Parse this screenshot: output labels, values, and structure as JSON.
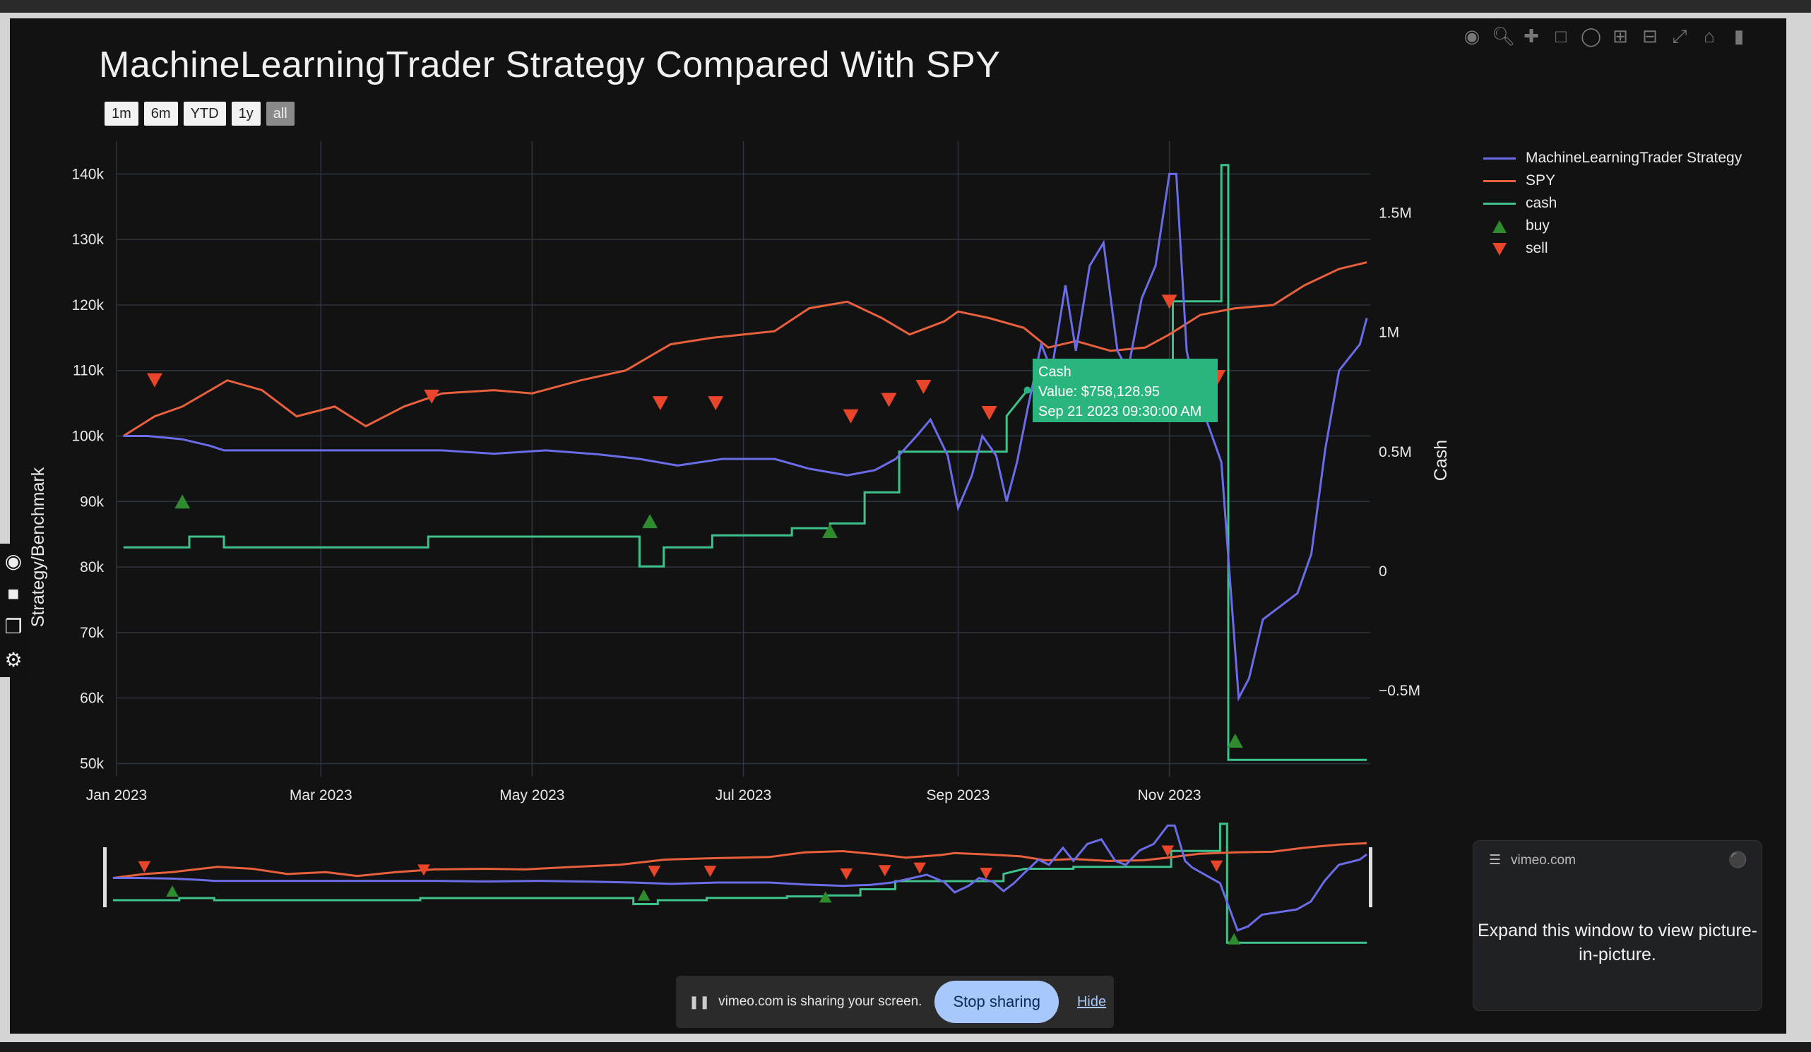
{
  "title": "MachineLearningTrader Strategy Compared With SPY",
  "range_selector": [
    {
      "label": "1m",
      "active": false
    },
    {
      "label": "6m",
      "active": false
    },
    {
      "label": "YTD",
      "active": false
    },
    {
      "label": "1y",
      "active": false
    },
    {
      "label": "all",
      "active": true
    }
  ],
  "modebar_icons": [
    "camera-icon",
    "zoom-icon",
    "pan-icon",
    "box-select-icon",
    "lasso-icon",
    "zoom-in-icon",
    "zoom-out-icon",
    "autoscale-icon",
    "reset-axes-icon",
    "plotly-logo-icon"
  ],
  "left_toolbar_icons": [
    "camera-icon",
    "video-icon",
    "window-icon",
    "gear-icon"
  ],
  "tooltip": {
    "title": "Cash",
    "line1": "Value: $758,128.95",
    "line2": "Sep 21 2023 09:30:00 AM",
    "color": "#2bb57e"
  },
  "pip": {
    "site": "vimeo.com",
    "message": "Expand this window to view picture-in-picture."
  },
  "share_bar": {
    "message": "vimeo.com is sharing your screen.",
    "stop_label": "Stop sharing",
    "hide_label": "Hide"
  },
  "colors": {
    "strategy": "#6b6ce8",
    "spy": "#e8603c",
    "cash": "#3fc18c",
    "buy": "#2e8b2e",
    "sell": "#e8452a",
    "grid": "#2e3440"
  },
  "chart_data": {
    "type": "line",
    "title": "MachineLearningTrader Strategy Compared With SPY",
    "x_ticks": [
      "Jan 2023",
      "Mar 2023",
      "May 2023",
      "Jul 2023",
      "Sep 2023",
      "Nov 2023"
    ],
    "xlim": [
      "2023-01-01",
      "2023-12-29"
    ],
    "ylabel": "Strategy/Benchmark",
    "ylim": [
      48000,
      145000
    ],
    "y_ticks": [
      {
        "value": 50000,
        "label": "50k"
      },
      {
        "value": 60000,
        "label": "60k"
      },
      {
        "value": 70000,
        "label": "70k"
      },
      {
        "value": 80000,
        "label": "80k"
      },
      {
        "value": 90000,
        "label": "90k"
      },
      {
        "value": 100000,
        "label": "100k"
      },
      {
        "value": 110000,
        "label": "110k"
      },
      {
        "value": 120000,
        "label": "120k"
      },
      {
        "value": 130000,
        "label": "130k"
      },
      {
        "value": 140000,
        "label": "140k"
      }
    ],
    "y2label": "Cash",
    "y2lim": [
      -860000,
      1800000
    ],
    "y2_ticks": [
      {
        "value": -500000,
        "label": "−0.5M"
      },
      {
        "value": 0,
        "label": "0"
      },
      {
        "value": 500000,
        "label": "0.5M"
      },
      {
        "value": 1000000,
        "label": "1M"
      },
      {
        "value": 1500000,
        "label": "1.5M"
      }
    ],
    "legend_position": "top-right",
    "grid": true,
    "series": [
      {
        "name": "MachineLearningTrader Strategy",
        "axis": "y",
        "points": [
          [
            "2023-01-03",
            100000
          ],
          [
            "2023-01-10",
            100000
          ],
          [
            "2023-01-20",
            99500
          ],
          [
            "2023-01-28",
            98500
          ],
          [
            "2023-02-01",
            97800
          ],
          [
            "2023-02-20",
            97800
          ],
          [
            "2023-03-15",
            97800
          ],
          [
            "2023-04-05",
            97800
          ],
          [
            "2023-04-20",
            97300
          ],
          [
            "2023-05-05",
            97800
          ],
          [
            "2023-05-20",
            97200
          ],
          [
            "2023-06-01",
            96500
          ],
          [
            "2023-06-12",
            95500
          ],
          [
            "2023-06-25",
            96500
          ],
          [
            "2023-07-10",
            96500
          ],
          [
            "2023-07-20",
            95000
          ],
          [
            "2023-07-31",
            94000
          ],
          [
            "2023-08-08",
            94800
          ],
          [
            "2023-08-14",
            96500
          ],
          [
            "2023-08-20",
            100000
          ],
          [
            "2023-08-24",
            102500
          ],
          [
            "2023-08-29",
            97000
          ],
          [
            "2023-09-01",
            89000
          ],
          [
            "2023-09-05",
            94000
          ],
          [
            "2023-09-08",
            100000
          ],
          [
            "2023-09-12",
            97000
          ],
          [
            "2023-09-15",
            90000
          ],
          [
            "2023-09-18",
            96000
          ],
          [
            "2023-09-21",
            104000
          ],
          [
            "2023-09-25",
            114000
          ],
          [
            "2023-09-28",
            110000
          ],
          [
            "2023-10-02",
            123000
          ],
          [
            "2023-10-05",
            113000
          ],
          [
            "2023-10-09",
            126000
          ],
          [
            "2023-10-13",
            129500
          ],
          [
            "2023-10-17",
            113000
          ],
          [
            "2023-10-20",
            110000
          ],
          [
            "2023-10-24",
            121000
          ],
          [
            "2023-10-28",
            126000
          ],
          [
            "2023-11-01",
            140000
          ],
          [
            "2023-11-03",
            140000
          ],
          [
            "2023-11-06",
            113000
          ],
          [
            "2023-11-08",
            108000
          ],
          [
            "2023-11-12",
            102000
          ],
          [
            "2023-11-16",
            96000
          ],
          [
            "2023-11-21",
            60000
          ],
          [
            "2023-11-24",
            63000
          ],
          [
            "2023-11-28",
            72000
          ],
          [
            "2023-12-03",
            74000
          ],
          [
            "2023-12-08",
            76000
          ],
          [
            "2023-12-12",
            82000
          ],
          [
            "2023-12-16",
            98000
          ],
          [
            "2023-12-20",
            110000
          ],
          [
            "2023-12-26",
            114000
          ],
          [
            "2023-12-28",
            118000
          ]
        ]
      },
      {
        "name": "SPY",
        "axis": "y",
        "points": [
          [
            "2023-01-03",
            100000
          ],
          [
            "2023-01-12",
            103000
          ],
          [
            "2023-01-20",
            104500
          ],
          [
            "2023-02-02",
            108500
          ],
          [
            "2023-02-12",
            107000
          ],
          [
            "2023-02-22",
            103000
          ],
          [
            "2023-03-05",
            104500
          ],
          [
            "2023-03-14",
            101500
          ],
          [
            "2023-03-25",
            104500
          ],
          [
            "2023-04-05",
            106500
          ],
          [
            "2023-04-20",
            107000
          ],
          [
            "2023-05-01",
            106500
          ],
          [
            "2023-05-15",
            108500
          ],
          [
            "2023-05-28",
            110000
          ],
          [
            "2023-06-10",
            114000
          ],
          [
            "2023-06-22",
            115000
          ],
          [
            "2023-07-01",
            115500
          ],
          [
            "2023-07-10",
            116000
          ],
          [
            "2023-07-20",
            119500
          ],
          [
            "2023-07-31",
            120500
          ],
          [
            "2023-08-10",
            118000
          ],
          [
            "2023-08-18",
            115500
          ],
          [
            "2023-08-28",
            117500
          ],
          [
            "2023-09-01",
            119000
          ],
          [
            "2023-09-10",
            118000
          ],
          [
            "2023-09-20",
            116500
          ],
          [
            "2023-09-27",
            113500
          ],
          [
            "2023-10-05",
            114500
          ],
          [
            "2023-10-15",
            113000
          ],
          [
            "2023-10-25",
            113500
          ],
          [
            "2023-11-01",
            115500
          ],
          [
            "2023-11-10",
            118500
          ],
          [
            "2023-11-20",
            119500
          ],
          [
            "2023-12-01",
            120000
          ],
          [
            "2023-12-10",
            123000
          ],
          [
            "2023-12-20",
            125500
          ],
          [
            "2023-12-28",
            126500
          ]
        ]
      },
      {
        "name": "cash",
        "axis": "y2",
        "points": [
          [
            "2023-01-03",
            100000
          ],
          [
            "2023-01-22",
            100000
          ],
          [
            "2023-01-22",
            145000
          ],
          [
            "2023-02-01",
            145000
          ],
          [
            "2023-02-01",
            100000
          ],
          [
            "2023-04-01",
            100000
          ],
          [
            "2023-04-01",
            145000
          ],
          [
            "2023-06-01",
            145000
          ],
          [
            "2023-06-01",
            20000
          ],
          [
            "2023-06-08",
            20000
          ],
          [
            "2023-06-08",
            100000
          ],
          [
            "2023-06-22",
            100000
          ],
          [
            "2023-06-22",
            150000
          ],
          [
            "2023-07-15",
            150000
          ],
          [
            "2023-07-15",
            180000
          ],
          [
            "2023-07-26",
            180000
          ],
          [
            "2023-07-26",
            200000
          ],
          [
            "2023-08-05",
            200000
          ],
          [
            "2023-08-05",
            330000
          ],
          [
            "2023-08-15",
            330000
          ],
          [
            "2023-08-15",
            500000
          ],
          [
            "2023-08-25",
            500000
          ],
          [
            "2023-08-25",
            500000
          ],
          [
            "2023-09-15",
            500000
          ],
          [
            "2023-09-15",
            650000
          ],
          [
            "2023-09-21",
            758129
          ],
          [
            "2023-10-05",
            758129
          ],
          [
            "2023-10-05",
            800000
          ],
          [
            "2023-11-02",
            800000
          ],
          [
            "2023-11-02",
            1130000
          ],
          [
            "2023-11-16",
            1130000
          ],
          [
            "2023-11-16",
            1700000
          ],
          [
            "2023-11-18",
            1700000
          ],
          [
            "2023-11-18",
            -790000
          ],
          [
            "2023-12-28",
            -790000
          ]
        ]
      }
    ],
    "markers": {
      "buy": [
        [
          "2023-01-20",
          90000
        ],
        [
          "2023-06-04",
          87000
        ],
        [
          "2023-07-26",
          85500
        ],
        [
          "2023-11-20",
          53500
        ]
      ],
      "sell": [
        [
          "2023-01-12",
          108500
        ],
        [
          "2023-04-02",
          106000
        ],
        [
          "2023-06-07",
          105000
        ],
        [
          "2023-06-23",
          105000
        ],
        [
          "2023-08-01",
          103000
        ],
        [
          "2023-08-12",
          105500
        ],
        [
          "2023-08-22",
          107500
        ],
        [
          "2023-09-10",
          103500
        ],
        [
          "2023-11-01",
          120500
        ],
        [
          "2023-11-15",
          109000
        ]
      ]
    }
  }
}
